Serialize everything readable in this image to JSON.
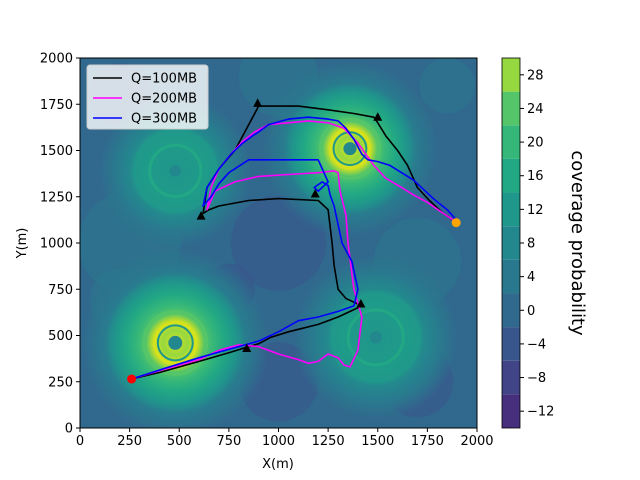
{
  "chart_data": {
    "type": "contour",
    "xlabel": "X(m)",
    "ylabel": "Y(m)",
    "colorbar_label": "coverage probability",
    "xlim": [
      0,
      2000
    ],
    "ylim": [
      0,
      2000
    ],
    "xticks": [
      "0",
      "250",
      "500",
      "750",
      "1000",
      "1250",
      "1500",
      "1750",
      "2000"
    ],
    "yticks": [
      "0",
      "250",
      "500",
      "750",
      "1000",
      "1250",
      "1500",
      "1750",
      "2000"
    ],
    "colorbar_ticks": [
      "−12",
      "−8",
      "−4",
      "0",
      "4",
      "8",
      "12",
      "16",
      "20",
      "24",
      "28"
    ],
    "colorbar_levels": [
      -14,
      -10,
      -6,
      -2,
      2,
      6,
      10,
      14,
      18,
      22,
      26,
      30
    ],
    "colorbar_colors": [
      "#481a6c",
      "#472f7d",
      "#414487",
      "#39568c",
      "#31688e",
      "#2a788e",
      "#23888e",
      "#1f988b",
      "#22a884",
      "#35b779",
      "#54c568",
      "#95d840",
      "#dde318"
    ],
    "background_color": "#31688e",
    "legend": {
      "placement": "top-left"
    },
    "hotspots": [
      {
        "name": "c1",
        "x": 480,
        "y": 460
      },
      {
        "name": "c2",
        "x": 1360,
        "y": 1510
      },
      {
        "name": "c3",
        "x": 480,
        "y": 1390
      },
      {
        "name": "c4",
        "x": 1490,
        "y": 490
      }
    ],
    "series": [
      {
        "name": "Q=100MB",
        "color": "#000000",
        "x": [
          260,
          400,
          600,
          760,
          850,
          900,
          960,
          1050,
          1200,
          1300,
          1380,
          1420,
          1380,
          1340,
          1300,
          1280,
          1270,
          1250,
          1200,
          1000,
          850,
          700,
          650,
          620,
          640,
          700,
          780,
          830,
          880,
          900,
          950,
          1100,
          1250,
          1380,
          1480,
          1500,
          1540,
          1600,
          1650,
          1700,
          1760,
          1830,
          1900
        ],
        "y": [
          265,
          300,
          360,
          410,
          440,
          455,
          490,
          520,
          560,
          600,
          640,
          660,
          680,
          700,
          750,
          880,
          1000,
          1180,
          1230,
          1240,
          1230,
          1200,
          1180,
          1160,
          1300,
          1400,
          1500,
          1600,
          1700,
          1740,
          1740,
          1740,
          1720,
          1700,
          1680,
          1650,
          1580,
          1500,
          1420,
          1300,
          1230,
          1160,
          1110
        ]
      },
      {
        "name": "Q=200MB",
        "color": "#ff00ff",
        "x": [
          260,
          400,
          600,
          700,
          800,
          900,
          1000,
          1100,
          1150,
          1200,
          1250,
          1300,
          1330,
          1360,
          1400,
          1420,
          1380,
          1350,
          1340,
          1310,
          1300,
          1280,
          1200,
          1050,
          900,
          780,
          680,
          640,
          660,
          700,
          760,
          820,
          880,
          950,
          1050,
          1150,
          1250,
          1330,
          1400,
          1480,
          1540,
          1620,
          1680,
          1750,
          1830,
          1900
        ],
        "y": [
          265,
          310,
          370,
          420,
          450,
          440,
          400,
          370,
          350,
          360,
          400,
          380,
          340,
          330,
          420,
          600,
          750,
          1000,
          1150,
          1280,
          1380,
          1390,
          1380,
          1370,
          1360,
          1330,
          1280,
          1180,
          1300,
          1400,
          1480,
          1550,
          1600,
          1640,
          1650,
          1660,
          1650,
          1620,
          1540,
          1420,
          1350,
          1300,
          1260,
          1220,
          1160,
          1110
        ]
      },
      {
        "name": "Q=300MB",
        "color": "#0000ff",
        "x": [
          260,
          420,
          600,
          700,
          800,
          900,
          1000,
          1100,
          1200,
          1300,
          1380,
          1400,
          1370,
          1320,
          1300,
          1280,
          1260,
          1250,
          1220,
          1180,
          1200,
          1250,
          1200,
          1000,
          850,
          750,
          700,
          660,
          620,
          640,
          700,
          760,
          820,
          870,
          900,
          950,
          1050,
          1150,
          1250,
          1300,
          1340,
          1380,
          1420,
          1450,
          1500,
          1560,
          1620,
          1680,
          1730,
          1780,
          1850,
          1900
        ],
        "y": [
          265,
          320,
          380,
          410,
          440,
          470,
          520,
          580,
          600,
          630,
          660,
          750,
          900,
          1000,
          1100,
          1200,
          1260,
          1310,
          1330,
          1300,
          1280,
          1330,
          1450,
          1450,
          1450,
          1380,
          1320,
          1250,
          1200,
          1300,
          1400,
          1480,
          1540,
          1580,
          1600,
          1640,
          1670,
          1680,
          1670,
          1660,
          1620,
          1560,
          1480,
          1450,
          1440,
          1420,
          1380,
          1340,
          1290,
          1240,
          1180,
          1120
        ]
      }
    ],
    "waypoints_triangle": [
      {
        "x": 610,
        "y": 1145
      },
      {
        "x": 895,
        "y": 1755
      },
      {
        "x": 1185,
        "y": 1265
      },
      {
        "x": 1500,
        "y": 1680
      },
      {
        "x": 1415,
        "y": 670
      },
      {
        "x": 840,
        "y": 430
      }
    ],
    "start_point": {
      "x": 260,
      "y": 265,
      "color": "#ff0000"
    },
    "end_point": {
      "x": 1895,
      "y": 1110,
      "color": "#ffa500"
    }
  }
}
